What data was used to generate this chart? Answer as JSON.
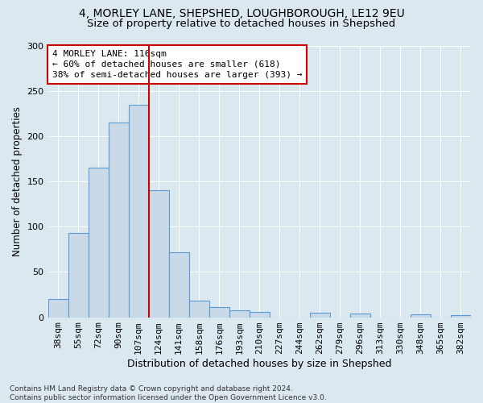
{
  "title_line1": "4, MORLEY LANE, SHEPSHED, LOUGHBOROUGH, LE12 9EU",
  "title_line2": "Size of property relative to detached houses in Shepshed",
  "xlabel": "Distribution of detached houses by size in Shepshed",
  "ylabel": "Number of detached properties",
  "footer": "Contains HM Land Registry data © Crown copyright and database right 2024.\nContains public sector information licensed under the Open Government Licence v3.0.",
  "categories": [
    "38sqm",
    "55sqm",
    "72sqm",
    "90sqm",
    "107sqm",
    "124sqm",
    "141sqm",
    "158sqm",
    "176sqm",
    "193sqm",
    "210sqm",
    "227sqm",
    "244sqm",
    "262sqm",
    "279sqm",
    "296sqm",
    "313sqm",
    "330sqm",
    "348sqm",
    "365sqm",
    "382sqm"
  ],
  "values": [
    20,
    93,
    165,
    215,
    235,
    140,
    72,
    18,
    11,
    8,
    6,
    0,
    0,
    5,
    0,
    4,
    0,
    0,
    3,
    0,
    2
  ],
  "bar_color": "#c9d9e8",
  "bar_edge_color": "#5b9bd5",
  "vline_x": 4.5,
  "vline_color": "#cc0000",
  "annotation_line1": "4 MORLEY LANE: 116sqm",
  "annotation_line2": "← 60% of detached houses are smaller (618)",
  "annotation_line3": "38% of semi-detached houses are larger (393) →",
  "annotation_box_color": "#ffffff",
  "annotation_box_edge": "#cc0000",
  "ylim": [
    0,
    300
  ],
  "yticks": [
    0,
    50,
    100,
    150,
    200,
    250,
    300
  ],
  "background_color": "#dce8f0",
  "plot_bg_color": "#dce8f0",
  "title_fontsize": 10,
  "subtitle_fontsize": 9.5,
  "xlabel_fontsize": 9,
  "ylabel_fontsize": 8.5,
  "tick_fontsize": 8,
  "annot_fontsize": 8,
  "footer_fontsize": 6.5
}
